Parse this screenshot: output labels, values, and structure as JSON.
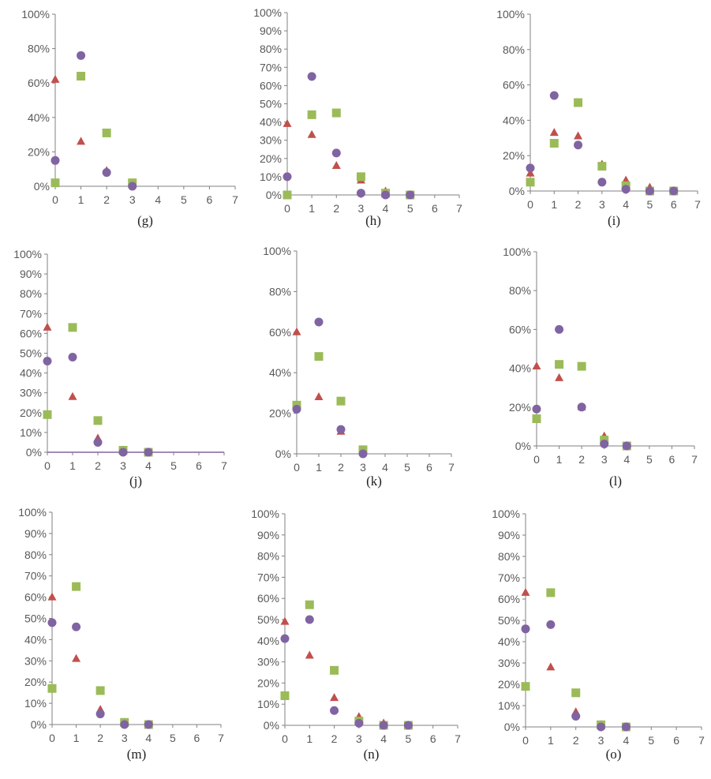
{
  "chart_data": [
    {
      "type": "scatter",
      "panel_label": "(g)",
      "label_bold": false,
      "ylim": [
        0,
        100
      ],
      "yticks": [
        0,
        20,
        40,
        60,
        80,
        100
      ],
      "xlim": [
        0,
        7
      ],
      "xticks": [
        0,
        1,
        2,
        3,
        4,
        5,
        6,
        7
      ],
      "series": [
        {
          "name": "triangle",
          "marker": "triangle",
          "color": "#c0504d",
          "x": [
            0,
            1,
            2,
            3
          ],
          "values": [
            62,
            26,
            9,
            1
          ]
        },
        {
          "name": "square",
          "marker": "square",
          "color": "#9bbb59",
          "x": [
            0,
            1,
            2,
            3
          ],
          "values": [
            2,
            64,
            31,
            2
          ]
        },
        {
          "name": "circle",
          "marker": "circle",
          "color": "#8064a2",
          "x": [
            0,
            1,
            2,
            3
          ],
          "values": [
            15,
            76,
            8,
            0
          ]
        }
      ]
    },
    {
      "type": "scatter",
      "panel_label": "(h)",
      "label_bold": false,
      "ylim": [
        0,
        100
      ],
      "yticks": [
        0,
        10,
        20,
        30,
        40,
        50,
        60,
        70,
        80,
        90,
        100
      ],
      "xlim": [
        0,
        7
      ],
      "xticks": [
        0,
        1,
        2,
        3,
        4,
        5,
        6,
        7
      ],
      "series": [
        {
          "name": "triangle",
          "marker": "triangle",
          "color": "#c0504d",
          "x": [
            0,
            1,
            2,
            3,
            4,
            5
          ],
          "values": [
            39,
            33,
            16,
            8,
            2,
            0
          ]
        },
        {
          "name": "square",
          "marker": "square",
          "color": "#9bbb59",
          "x": [
            0,
            1,
            2,
            3,
            4,
            5
          ],
          "values": [
            0,
            44,
            45,
            10,
            1,
            0
          ]
        },
        {
          "name": "circle",
          "marker": "circle",
          "color": "#8064a2",
          "x": [
            0,
            1,
            2,
            3,
            4,
            5
          ],
          "values": [
            10,
            65,
            23,
            1,
            0,
            0
          ]
        }
      ]
    },
    {
      "type": "scatter",
      "panel_label": "(i)",
      "label_bold": false,
      "ylim": [
        0,
        100
      ],
      "yticks": [
        0,
        20,
        40,
        60,
        80,
        100
      ],
      "xlim": [
        0,
        7
      ],
      "xticks": [
        0,
        1,
        2,
        3,
        4,
        5,
        6,
        7
      ],
      "series": [
        {
          "name": "triangle",
          "marker": "triangle",
          "color": "#c0504d",
          "x": [
            0,
            1,
            2,
            3,
            4,
            5,
            6
          ],
          "values": [
            10,
            33,
            31,
            15,
            6,
            2,
            0
          ]
        },
        {
          "name": "square",
          "marker": "square",
          "color": "#9bbb59",
          "x": [
            0,
            1,
            2,
            3,
            4,
            5,
            6
          ],
          "values": [
            5,
            27,
            50,
            14,
            3,
            0,
            0
          ]
        },
        {
          "name": "circle",
          "marker": "circle",
          "color": "#8064a2",
          "x": [
            0,
            1,
            2,
            3,
            4,
            5,
            6
          ],
          "values": [
            13,
            54,
            26,
            5,
            1,
            0,
            0
          ]
        }
      ]
    },
    {
      "type": "scatter",
      "panel_label": "(j)",
      "label_bold": false,
      "ylim": [
        0,
        100
      ],
      "yticks": [
        0,
        10,
        20,
        30,
        40,
        50,
        60,
        70,
        80,
        90,
        100
      ],
      "xlim": [
        0,
        7
      ],
      "xticks": [
        0,
        1,
        2,
        3,
        4,
        5,
        6,
        7
      ],
      "series": [
        {
          "name": "triangle",
          "marker": "triangle",
          "color": "#c0504d",
          "x": [
            0,
            1,
            2,
            3,
            4
          ],
          "values": [
            63,
            28,
            7,
            1,
            0
          ]
        },
        {
          "name": "square",
          "marker": "square",
          "color": "#9bbb59",
          "x": [
            0,
            1,
            2,
            3,
            4
          ],
          "values": [
            19,
            63,
            16,
            1,
            0
          ]
        },
        {
          "name": "circle",
          "marker": "circle",
          "color": "#8064a2",
          "x": [
            0,
            1,
            2,
            3,
            4
          ],
          "values": [
            46,
            48,
            5,
            0,
            0
          ]
        }
      ]
    },
    {
      "type": "scatter",
      "panel_label": "(k)",
      "label_bold": false,
      "ylim": [
        0,
        100
      ],
      "yticks": [
        0,
        20,
        40,
        60,
        80,
        100
      ],
      "xlim": [
        0,
        7
      ],
      "xticks": [
        0,
        1,
        2,
        3,
        4,
        5,
        6,
        7
      ],
      "series": [
        {
          "name": "triangle",
          "marker": "triangle",
          "color": "#c0504d",
          "x": [
            0,
            1,
            2,
            3
          ],
          "values": [
            60,
            28,
            11,
            1
          ]
        },
        {
          "name": "square",
          "marker": "square",
          "color": "#9bbb59",
          "x": [
            0,
            1,
            2,
            3
          ],
          "values": [
            24,
            48,
            26,
            2
          ]
        },
        {
          "name": "circle",
          "marker": "circle",
          "color": "#8064a2",
          "x": [
            0,
            1,
            2,
            3
          ],
          "values": [
            22,
            65,
            12,
            0
          ]
        }
      ]
    },
    {
      "type": "scatter",
      "panel_label": "(l)",
      "label_bold": false,
      "ylim": [
        0,
        100
      ],
      "yticks": [
        0,
        20,
        40,
        60,
        80,
        100
      ],
      "xlim": [
        0,
        7
      ],
      "xticks": [
        0,
        1,
        2,
        3,
        4,
        5,
        6,
        7
      ],
      "series": [
        {
          "name": "triangle",
          "marker": "triangle",
          "color": "#c0504d",
          "x": [
            0,
            1,
            2,
            3,
            4
          ],
          "values": [
            41,
            35,
            20,
            5,
            0
          ]
        },
        {
          "name": "square",
          "marker": "square",
          "color": "#9bbb59",
          "x": [
            0,
            1,
            2,
            3,
            4
          ],
          "values": [
            14,
            42,
            41,
            3,
            0
          ]
        },
        {
          "name": "circle",
          "marker": "circle",
          "color": "#8064a2",
          "x": [
            0,
            1,
            2,
            3,
            4
          ],
          "values": [
            19,
            60,
            20,
            1,
            0
          ]
        }
      ]
    },
    {
      "type": "scatter",
      "panel_label": "(m)",
      "label_bold": true,
      "ylim": [
        0,
        100
      ],
      "yticks": [
        0,
        10,
        20,
        30,
        40,
        50,
        60,
        70,
        80,
        90,
        100
      ],
      "xlim": [
        0,
        7
      ],
      "xticks": [
        0,
        1,
        2,
        3,
        4,
        5,
        6,
        7
      ],
      "series": [
        {
          "name": "triangle",
          "marker": "triangle",
          "color": "#c0504d",
          "x": [
            0,
            1,
            2,
            3,
            4
          ],
          "values": [
            60,
            31,
            7,
            1,
            0
          ]
        },
        {
          "name": "square",
          "marker": "square",
          "color": "#9bbb59",
          "x": [
            0,
            1,
            2,
            3,
            4
          ],
          "values": [
            17,
            65,
            16,
            1,
            0
          ]
        },
        {
          "name": "circle",
          "marker": "circle",
          "color": "#8064a2",
          "x": [
            0,
            1,
            2,
            3,
            4
          ],
          "values": [
            48,
            46,
            5,
            0,
            0
          ]
        }
      ]
    },
    {
      "type": "scatter",
      "panel_label": "(n)",
      "label_bold": true,
      "ylim": [
        0,
        100
      ],
      "yticks": [
        0,
        10,
        20,
        30,
        40,
        50,
        60,
        70,
        80,
        90,
        100
      ],
      "xlim": [
        0,
        7
      ],
      "xticks": [
        0,
        1,
        2,
        3,
        4,
        5,
        6,
        7
      ],
      "series": [
        {
          "name": "triangle",
          "marker": "triangle",
          "color": "#c0504d",
          "x": [
            0,
            1,
            2,
            3,
            4,
            5
          ],
          "values": [
            49,
            33,
            13,
            4,
            1,
            0
          ]
        },
        {
          "name": "square",
          "marker": "square",
          "color": "#9bbb59",
          "x": [
            0,
            1,
            2,
            3,
            4,
            5
          ],
          "values": [
            14,
            57,
            26,
            2,
            0,
            0
          ]
        },
        {
          "name": "circle",
          "marker": "circle",
          "color": "#8064a2",
          "x": [
            0,
            1,
            2,
            3,
            4,
            5
          ],
          "values": [
            41,
            50,
            7,
            1,
            0,
            0
          ]
        }
      ]
    },
    {
      "type": "scatter",
      "panel_label": "(o)",
      "label_bold": true,
      "ylim": [
        0,
        100
      ],
      "yticks": [
        0,
        10,
        20,
        30,
        40,
        50,
        60,
        70,
        80,
        90,
        100
      ],
      "xlim": [
        0,
        7
      ],
      "xticks": [
        0,
        1,
        2,
        3,
        4,
        5,
        6,
        7
      ],
      "series": [
        {
          "name": "triangle",
          "marker": "triangle",
          "color": "#c0504d",
          "x": [
            0,
            1,
            2,
            3,
            4
          ],
          "values": [
            63,
            28,
            7,
            1,
            0
          ]
        },
        {
          "name": "square",
          "marker": "square",
          "color": "#9bbb59",
          "x": [
            0,
            1,
            2,
            3,
            4
          ],
          "values": [
            19,
            63,
            16,
            1,
            0
          ]
        },
        {
          "name": "circle",
          "marker": "circle",
          "color": "#8064a2",
          "x": [
            0,
            1,
            2,
            3,
            4
          ],
          "values": [
            46,
            48,
            5,
            0,
            0
          ]
        }
      ]
    }
  ]
}
